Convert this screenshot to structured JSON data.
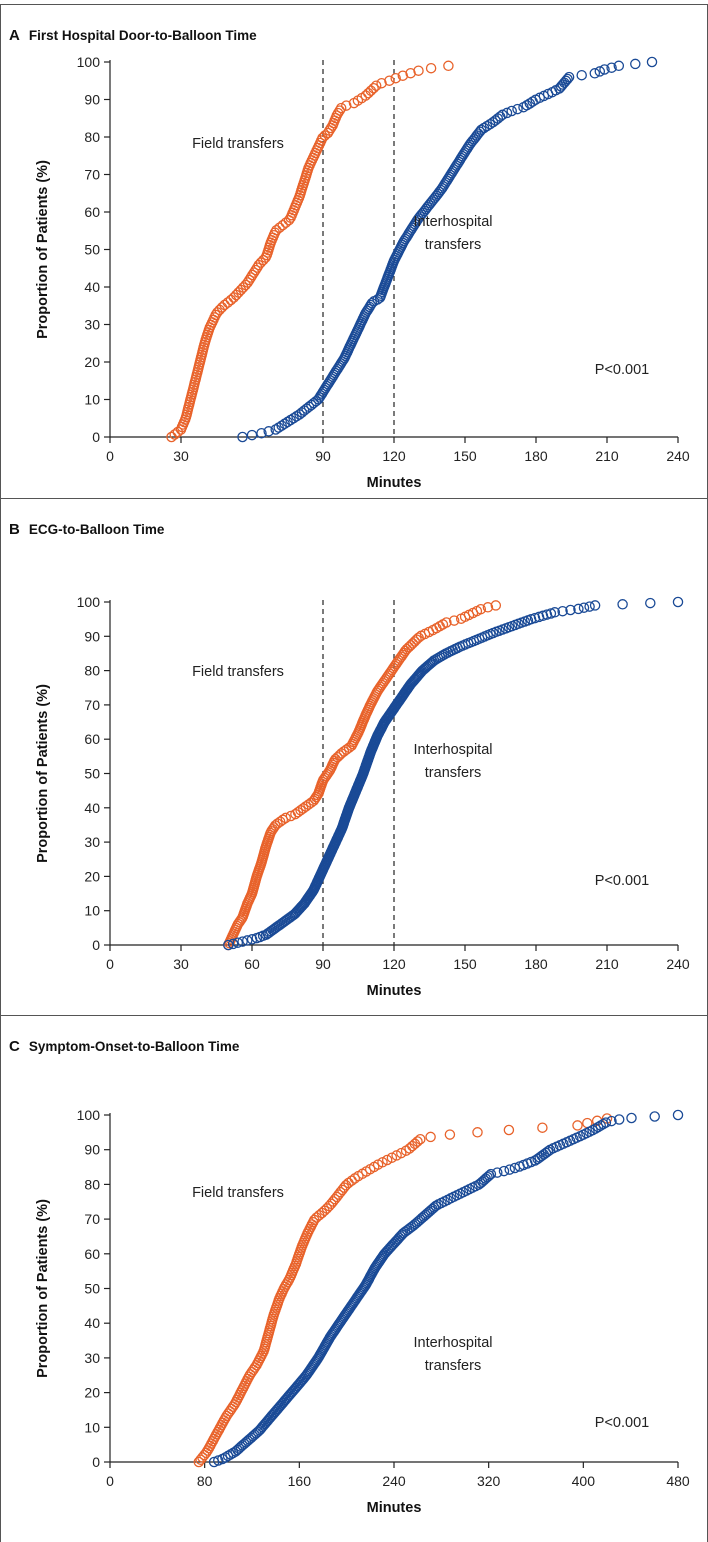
{
  "panels": [
    {
      "letter": "A",
      "title": "First Hospital Door-to-Balloon Time",
      "p_value": "P<0.001",
      "field_label": "Field transfers",
      "inter_label_1": "Interhospital",
      "inter_label_2": "transfers"
    },
    {
      "letter": "B",
      "title": "ECG-to-Balloon Time",
      "p_value": "P<0.001",
      "field_label": "Field transfers",
      "inter_label_1": "Interhospital",
      "inter_label_2": "transfers"
    },
    {
      "letter": "C",
      "title": "Symptom-Onset-to-Balloon Time",
      "p_value": "P<0.001",
      "field_label": "Field transfers",
      "inter_label_1": "Interhospital",
      "inter_label_2": "transfers"
    }
  ],
  "chart_data": [
    {
      "type": "scatter",
      "title": "First Hospital Door-to-Balloon Time",
      "xlabel": "Minutes",
      "ylabel": "Proportion of Patients (%)",
      "xlim": [
        0,
        240
      ],
      "ylim": [
        0,
        100
      ],
      "xticks": [
        0,
        30,
        90,
        120,
        150,
        180,
        210,
        240
      ],
      "yticks": [
        0,
        10,
        20,
        30,
        40,
        50,
        60,
        70,
        80,
        90,
        100
      ],
      "reference_lines_x": [
        90,
        120
      ],
      "grid": false,
      "series": [
        {
          "color": "#e8622a",
          "knots": [
            [
              26,
              0
            ],
            [
              28,
              1
            ],
            [
              30,
              2
            ],
            [
              32,
              5
            ],
            [
              34,
              10
            ],
            [
              36,
              15
            ],
            [
              38,
              20
            ],
            [
              40,
              25
            ],
            [
              42,
              29
            ],
            [
              45,
              33
            ],
            [
              48,
              35
            ],
            [
              52,
              37
            ],
            [
              55,
              39
            ],
            [
              58,
              41
            ],
            [
              61,
              44
            ],
            [
              63,
              46
            ],
            [
              66,
              48
            ],
            [
              68,
              52
            ],
            [
              70,
              55
            ],
            [
              72,
              56
            ],
            [
              76,
              58
            ],
            [
              78,
              61
            ],
            [
              80,
              64
            ],
            [
              82,
              68
            ],
            [
              84,
              72
            ],
            [
              87,
              76
            ],
            [
              90,
              80
            ],
            [
              92,
              81
            ],
            [
              94,
              83
            ],
            [
              96,
              86
            ],
            [
              98,
              88
            ],
            [
              103,
              89
            ],
            [
              108,
              91
            ],
            [
              113,
              94
            ],
            [
              118,
              95
            ],
            [
              122,
              96
            ],
            [
              127,
              97
            ],
            [
              132,
              98
            ],
            [
              143,
              99
            ]
          ],
          "n": 150
        },
        {
          "color": "#1a4a96",
          "knots": [
            [
              56,
              0
            ],
            [
              64,
              1
            ],
            [
              70,
              2
            ],
            [
              75,
              4
            ],
            [
              80,
              6
            ],
            [
              84,
              8
            ],
            [
              88,
              10
            ],
            [
              90,
              12
            ],
            [
              93,
              15
            ],
            [
              96,
              18
            ],
            [
              99,
              21
            ],
            [
              102,
              25
            ],
            [
              105,
              29
            ],
            [
              108,
              33
            ],
            [
              111,
              36
            ],
            [
              114,
              37
            ],
            [
              117,
              42
            ],
            [
              120,
              47
            ],
            [
              124,
              52
            ],
            [
              127,
              55
            ],
            [
              130,
              58
            ],
            [
              135,
              62
            ],
            [
              140,
              66
            ],
            [
              144,
              70
            ],
            [
              148,
              74
            ],
            [
              152,
              78
            ],
            [
              157,
              82
            ],
            [
              162,
              84
            ],
            [
              166,
              86
            ],
            [
              170,
              87
            ],
            [
              175,
              88
            ],
            [
              180,
              90
            ],
            [
              187,
              92
            ],
            [
              190,
              93
            ],
            [
              194,
              96
            ],
            [
              205,
              97
            ],
            [
              209,
              98
            ],
            [
              215,
              99
            ],
            [
              229,
              100
            ]
          ],
          "n": 200
        }
      ]
    },
    {
      "type": "scatter",
      "title": "ECG-to-Balloon Time",
      "xlabel": "Minutes",
      "ylabel": "Proportion of Patients (%)",
      "xlim": [
        0,
        240
      ],
      "ylim": [
        0,
        100
      ],
      "xticks": [
        0,
        30,
        60,
        90,
        120,
        150,
        180,
        210,
        240
      ],
      "yticks": [
        0,
        10,
        20,
        30,
        40,
        50,
        60,
        70,
        80,
        90,
        100
      ],
      "reference_lines_x": [
        90,
        120
      ],
      "grid": false,
      "series": [
        {
          "color": "#e8622a",
          "knots": [
            [
              50,
              0
            ],
            [
              52,
              3
            ],
            [
              54,
              6
            ],
            [
              56,
              8
            ],
            [
              58,
              12
            ],
            [
              60,
              15
            ],
            [
              62,
              20
            ],
            [
              64,
              24
            ],
            [
              66,
              29
            ],
            [
              68,
              33
            ],
            [
              70,
              35
            ],
            [
              74,
              37
            ],
            [
              78,
              38
            ],
            [
              82,
              40
            ],
            [
              86,
              42
            ],
            [
              88,
              44
            ],
            [
              90,
              48
            ],
            [
              93,
              51
            ],
            [
              95,
              54
            ],
            [
              98,
              56
            ],
            [
              102,
              58
            ],
            [
              105,
              62
            ],
            [
              108,
              67
            ],
            [
              110,
              70
            ],
            [
              113,
              74
            ],
            [
              117,
              78
            ],
            [
              121,
              82
            ],
            [
              125,
              86
            ],
            [
              131,
              90
            ],
            [
              137,
              92
            ],
            [
              142,
              94
            ],
            [
              148,
              95
            ],
            [
              154,
              97
            ],
            [
              157,
              98
            ],
            [
              163,
              99
            ]
          ],
          "n": 180
        },
        {
          "color": "#1a4a96",
          "knots": [
            [
              50,
              0
            ],
            [
              56,
              1
            ],
            [
              62,
              2
            ],
            [
              66,
              3
            ],
            [
              72,
              6
            ],
            [
              78,
              9
            ],
            [
              82,
              12
            ],
            [
              86,
              16
            ],
            [
              90,
              22
            ],
            [
              94,
              28
            ],
            [
              98,
              34
            ],
            [
              101,
              40
            ],
            [
              104,
              45
            ],
            [
              107,
              50
            ],
            [
              110,
              56
            ],
            [
              113,
              61
            ],
            [
              116,
              65
            ],
            [
              120,
              69
            ],
            [
              123,
              72
            ],
            [
              127,
              76
            ],
            [
              132,
              80
            ],
            [
              137,
              83
            ],
            [
              142,
              85
            ],
            [
              148,
              87
            ],
            [
              155,
              89
            ],
            [
              162,
              91
            ],
            [
              170,
              93
            ],
            [
              178,
              95
            ],
            [
              188,
              97
            ],
            [
              198,
              98
            ],
            [
              205,
              99
            ],
            [
              240,
              100
            ]
          ],
          "n": 300
        }
      ]
    },
    {
      "type": "scatter",
      "title": "Symptom-Onset-to-Balloon Time",
      "xlabel": "Minutes",
      "ylabel": "Proportion of Patients (%)",
      "xlim": [
        0,
        480
      ],
      "ylim": [
        0,
        100
      ],
      "xticks": [
        0,
        80,
        160,
        240,
        320,
        400,
        480
      ],
      "yticks": [
        0,
        10,
        20,
        30,
        40,
        50,
        60,
        70,
        80,
        90,
        100
      ],
      "reference_lines_x": [],
      "grid": false,
      "series": [
        {
          "color": "#e8622a",
          "knots": [
            [
              75,
              0
            ],
            [
              82,
              3
            ],
            [
              90,
              8
            ],
            [
              98,
              13
            ],
            [
              106,
              17
            ],
            [
              112,
              21
            ],
            [
              118,
              25
            ],
            [
              124,
              28
            ],
            [
              130,
              32
            ],
            [
              134,
              37
            ],
            [
              138,
              42
            ],
            [
              143,
              47
            ],
            [
              147,
              50
            ],
            [
              152,
              53
            ],
            [
              157,
              57
            ],
            [
              162,
              62
            ],
            [
              167,
              66
            ],
            [
              173,
              70
            ],
            [
              180,
              72
            ],
            [
              186,
              74
            ],
            [
              193,
              77
            ],
            [
              200,
              80
            ],
            [
              208,
              82
            ],
            [
              218,
              84
            ],
            [
              228,
              86
            ],
            [
              240,
              88
            ],
            [
              252,
              90
            ],
            [
              262,
              93
            ],
            [
              275,
              94
            ],
            [
              310,
              95
            ],
            [
              350,
              96
            ],
            [
              395,
              97
            ],
            [
              420,
              99
            ]
          ],
          "n": 150
        },
        {
          "color": "#1a4a96",
          "knots": [
            [
              88,
              0
            ],
            [
              96,
              1
            ],
            [
              106,
              3
            ],
            [
              116,
              6
            ],
            [
              126,
              9
            ],
            [
              136,
              13
            ],
            [
              146,
              17
            ],
            [
              156,
              21
            ],
            [
              166,
              25
            ],
            [
              176,
              30
            ],
            [
              186,
              36
            ],
            [
              196,
              41
            ],
            [
              206,
              46
            ],
            [
              216,
              51
            ],
            [
              224,
              56
            ],
            [
              232,
              60
            ],
            [
              240,
              63
            ],
            [
              248,
              66
            ],
            [
              256,
              68
            ],
            [
              266,
              71
            ],
            [
              276,
              74
            ],
            [
              288,
              76
            ],
            [
              300,
              78
            ],
            [
              312,
              80
            ],
            [
              322,
              83
            ],
            [
              335,
              84
            ],
            [
              345,
              85
            ],
            [
              360,
              87
            ],
            [
              372,
              90
            ],
            [
              385,
              92
            ],
            [
              398,
              94
            ],
            [
              410,
              96
            ],
            [
              420,
              98
            ],
            [
              435,
              99
            ],
            [
              480,
              100
            ]
          ],
          "n": 230
        }
      ]
    }
  ]
}
